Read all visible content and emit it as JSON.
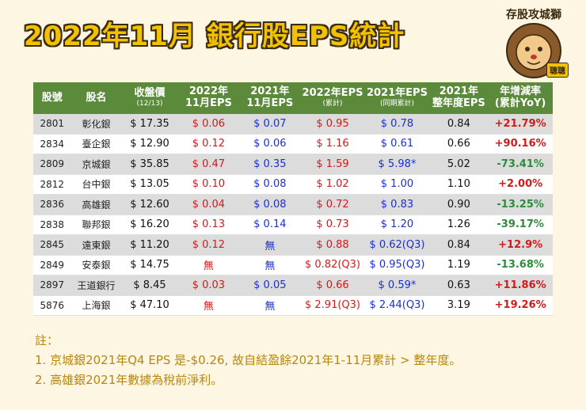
{
  "title": "2022年11月 銀行股EPS統計",
  "logo": {
    "text": "存股攻城獅",
    "badge": "聰聰"
  },
  "headers": [
    {
      "main": "股號",
      "sub": ""
    },
    {
      "main": "股名",
      "sub": ""
    },
    {
      "main": "收盤價",
      "sub": "(12/13)"
    },
    {
      "main": "2022年",
      "main2": "11月EPS"
    },
    {
      "main": "2021年",
      "main2": "11月EPS"
    },
    {
      "main": "2022年EPS",
      "sub": "(累計)"
    },
    {
      "main": "2021年EPS",
      "sub": "(同期累計)"
    },
    {
      "main": "2021年",
      "main2": "整年度EPS"
    },
    {
      "main": "年增減率",
      "main2": "(累計YoY)"
    }
  ],
  "rows": [
    {
      "code": "2801",
      "name": "彰化銀",
      "price": "$ 17.35",
      "eps22m": "$ 0.06",
      "eps21m": "$ 0.07",
      "eps22c": "$ 0.95",
      "eps21c": "$ 0.78",
      "eps21y": "0.84",
      "yoy": "+21.79%",
      "dir": "pos"
    },
    {
      "code": "2834",
      "name": "臺企銀",
      "price": "$ 12.90",
      "eps22m": "$ 0.12",
      "eps21m": "$ 0.06",
      "eps22c": "$ 1.16",
      "eps21c": "$ 0.61",
      "eps21y": "0.66",
      "yoy": "+90.16%",
      "dir": "pos"
    },
    {
      "code": "2809",
      "name": "京城銀",
      "price": "$ 35.85",
      "eps22m": "$ 0.47",
      "eps21m": "$ 0.35",
      "eps22c": "$ 1.59",
      "eps21c": "$ 5.98*",
      "eps21y": "5.02",
      "yoy": "-73.41%",
      "dir": "neg"
    },
    {
      "code": "2812",
      "name": "台中銀",
      "price": "$ 13.05",
      "eps22m": "$ 0.10",
      "eps21m": "$ 0.08",
      "eps22c": "$ 1.02",
      "eps21c": "$ 1.00",
      "eps21y": "1.10",
      "yoy": "+2.00%",
      "dir": "pos"
    },
    {
      "code": "2836",
      "name": "高雄銀",
      "price": "$ 12.60",
      "eps22m": "$ 0.04",
      "eps21m": "$ 0.08",
      "eps22c": "$ 0.72",
      "eps21c": "$ 0.83",
      "eps21y": "0.90",
      "yoy": "-13.25%",
      "dir": "neg"
    },
    {
      "code": "2838",
      "name": "聯邦銀",
      "price": "$ 16.20",
      "eps22m": "$ 0.13",
      "eps21m": "$ 0.14",
      "eps22c": "$ 0.73",
      "eps21c": "$ 1.20",
      "eps21y": "1.26",
      "yoy": "-39.17%",
      "dir": "neg"
    },
    {
      "code": "2845",
      "name": "遠東銀",
      "price": "$ 11.20",
      "eps22m": "$ 0.12",
      "eps21m": "無",
      "eps22c": "$ 0.88",
      "eps21c": "$ 0.62(Q3)",
      "eps21y": "0.84",
      "yoy": "+12.9%",
      "dir": "pos"
    },
    {
      "code": "2849",
      "name": "安泰銀",
      "price": "$ 14.75",
      "eps22m": "無",
      "eps21m": "無",
      "eps22c": "$ 0.82(Q3)",
      "eps21c": "$ 0.95(Q3)",
      "eps21y": "1.19",
      "yoy": "-13.68%",
      "dir": "neg"
    },
    {
      "code": "2897",
      "name": "王道銀行",
      "price": "$ 8.45",
      "eps22m": "$ 0.03",
      "eps21m": "$ 0.05",
      "eps22c": "$ 0.66",
      "eps21c": "$ 0.59*",
      "eps21y": "0.63",
      "yoy": "+11.86%",
      "dir": "pos"
    },
    {
      "code": "5876",
      "name": "上海銀",
      "price": "$ 47.10",
      "eps22m": "無",
      "eps21m": "無",
      "eps22c": "$ 2.91(Q3)",
      "eps21c": "$ 2.44(Q3)",
      "eps21y": "3.19",
      "yoy": "+19.26%",
      "dir": "pos"
    }
  ],
  "notes": {
    "label": "註：",
    "items": [
      "1.  京城銀2021年Q4 EPS 是-$0.26,  故自結盈餘2021年1-11月累計 > 整年度。",
      "2.  高雄銀2021年數據為稅前淨利。"
    ]
  },
  "colors": {
    "header": "#5a8a3a",
    "title": "#f2c200",
    "positive": "#d11a1a",
    "negative": "#2e8b3a",
    "eps2021": "#1a2fcf",
    "notes": "#b8860b"
  }
}
